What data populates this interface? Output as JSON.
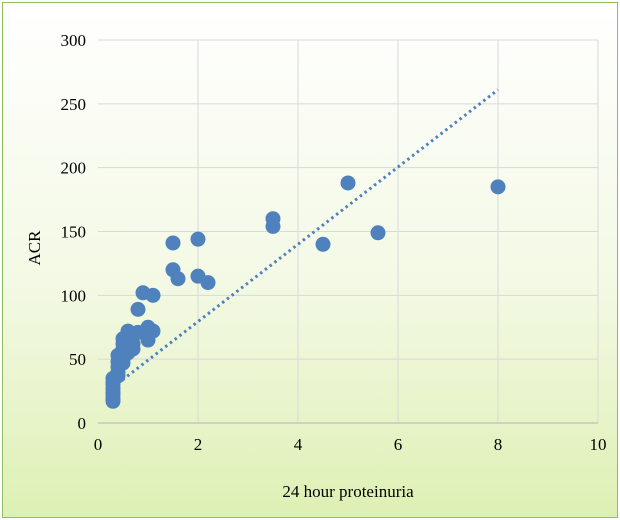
{
  "chart_data": {
    "type": "scatter",
    "title": "",
    "xlabel": "24 hour proteinuria",
    "ylabel": "ACR",
    "xlim": [
      0,
      10
    ],
    "ylim": [
      0,
      300
    ],
    "x_ticks": [
      "0",
      "2",
      "4",
      "6",
      "8",
      "10"
    ],
    "y_ticks": [
      "0",
      "50",
      "100",
      "150",
      "200",
      "250",
      "300"
    ],
    "grid": true,
    "legend": "none",
    "marker_color": "#4f81bd",
    "trendline": {
      "type": "linear",
      "style": "dotted",
      "color": "#4f81bd",
      "from": [
        0.3,
        28
      ],
      "to": [
        8,
        261
      ]
    },
    "points": [
      {
        "x": 0.3,
        "y": 17
      },
      {
        "x": 0.3,
        "y": 19
      },
      {
        "x": 0.3,
        "y": 22
      },
      {
        "x": 0.3,
        "y": 24
      },
      {
        "x": 0.3,
        "y": 27
      },
      {
        "x": 0.3,
        "y": 30
      },
      {
        "x": 0.3,
        "y": 32
      },
      {
        "x": 0.3,
        "y": 35
      },
      {
        "x": 0.4,
        "y": 37
      },
      {
        "x": 0.4,
        "y": 40
      },
      {
        "x": 0.4,
        "y": 44
      },
      {
        "x": 0.4,
        "y": 48
      },
      {
        "x": 0.4,
        "y": 53
      },
      {
        "x": 0.5,
        "y": 47
      },
      {
        "x": 0.5,
        "y": 50
      },
      {
        "x": 0.5,
        "y": 55
      },
      {
        "x": 0.5,
        "y": 58
      },
      {
        "x": 0.5,
        "y": 62
      },
      {
        "x": 0.5,
        "y": 66
      },
      {
        "x": 0.6,
        "y": 55
      },
      {
        "x": 0.6,
        "y": 60
      },
      {
        "x": 0.6,
        "y": 64
      },
      {
        "x": 0.6,
        "y": 68
      },
      {
        "x": 0.6,
        "y": 72
      },
      {
        "x": 0.7,
        "y": 58
      },
      {
        "x": 0.7,
        "y": 62
      },
      {
        "x": 0.7,
        "y": 70
      },
      {
        "x": 0.8,
        "y": 71
      },
      {
        "x": 0.8,
        "y": 89
      },
      {
        "x": 0.9,
        "y": 102
      },
      {
        "x": 1.0,
        "y": 65
      },
      {
        "x": 1.0,
        "y": 70
      },
      {
        "x": 1.0,
        "y": 75
      },
      {
        "x": 1.1,
        "y": 72
      },
      {
        "x": 1.1,
        "y": 100
      },
      {
        "x": 1.5,
        "y": 120
      },
      {
        "x": 1.5,
        "y": 141
      },
      {
        "x": 1.6,
        "y": 113
      },
      {
        "x": 2.0,
        "y": 115
      },
      {
        "x": 2.0,
        "y": 144
      },
      {
        "x": 2.2,
        "y": 110
      },
      {
        "x": 3.5,
        "y": 154
      },
      {
        "x": 3.5,
        "y": 160
      },
      {
        "x": 4.5,
        "y": 140
      },
      {
        "x": 5.0,
        "y": 188
      },
      {
        "x": 5.6,
        "y": 149
      },
      {
        "x": 8.0,
        "y": 185
      }
    ]
  }
}
